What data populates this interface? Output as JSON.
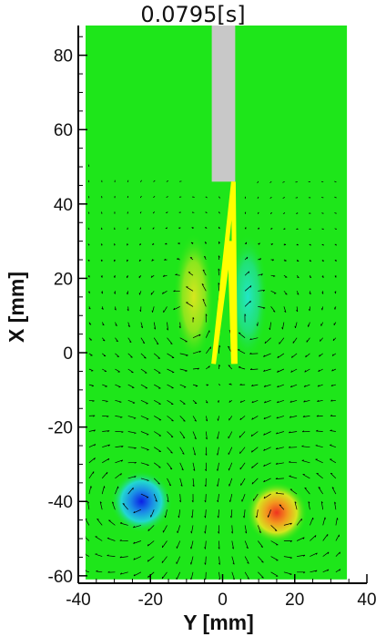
{
  "chart_data": {
    "type": "heatmap",
    "title": "0.0795[s]",
    "xlabel": "Y [mm]",
    "ylabel": "X [mm]",
    "xlim": [
      -40,
      40
    ],
    "ylim": [
      -62,
      88
    ],
    "x_ticks": [
      -40,
      -20,
      0,
      20,
      40
    ],
    "y_ticks": [
      -60,
      -40,
      -20,
      0,
      20,
      40,
      60,
      80
    ],
    "field": "vorticity contours with velocity vectors",
    "colormap": [
      "#0b1fe6",
      "#19c8e6",
      "#22e0b0",
      "#1ee61a",
      "#c8e61e",
      "#f2c81e",
      "#f0321e"
    ],
    "background_level_color": "#1ee61a",
    "domain_y": [
      -38,
      34.5
    ],
    "domain_x": [
      -61,
      88
    ],
    "vortices": [
      {
        "y": -22.5,
        "x": -40,
        "sign": "negative",
        "peak_color": "#0b1fe6"
      },
      {
        "y": 15,
        "x": -43,
        "sign": "positive",
        "peak_color": "#f0321e"
      },
      {
        "y": -8,
        "x": 15,
        "sign": "weak-positive",
        "peak_color": "#c8e61e"
      },
      {
        "y": 7,
        "x": 15,
        "sign": "weak-negative",
        "peak_color": "#22e0b0"
      }
    ],
    "rod": {
      "y_range": [
        -3,
        3.5
      ],
      "x_top": 88,
      "x_bottom": 46,
      "color": "#c8c8c8"
    },
    "flap": {
      "points": [
        [
          3,
          -3
        ],
        [
          2,
          30
        ],
        [
          -2.5,
          -3
        ],
        [
          3,
          46
        ],
        [
          3.5,
          -3
        ]
      ],
      "color": "#ffff00"
    }
  }
}
